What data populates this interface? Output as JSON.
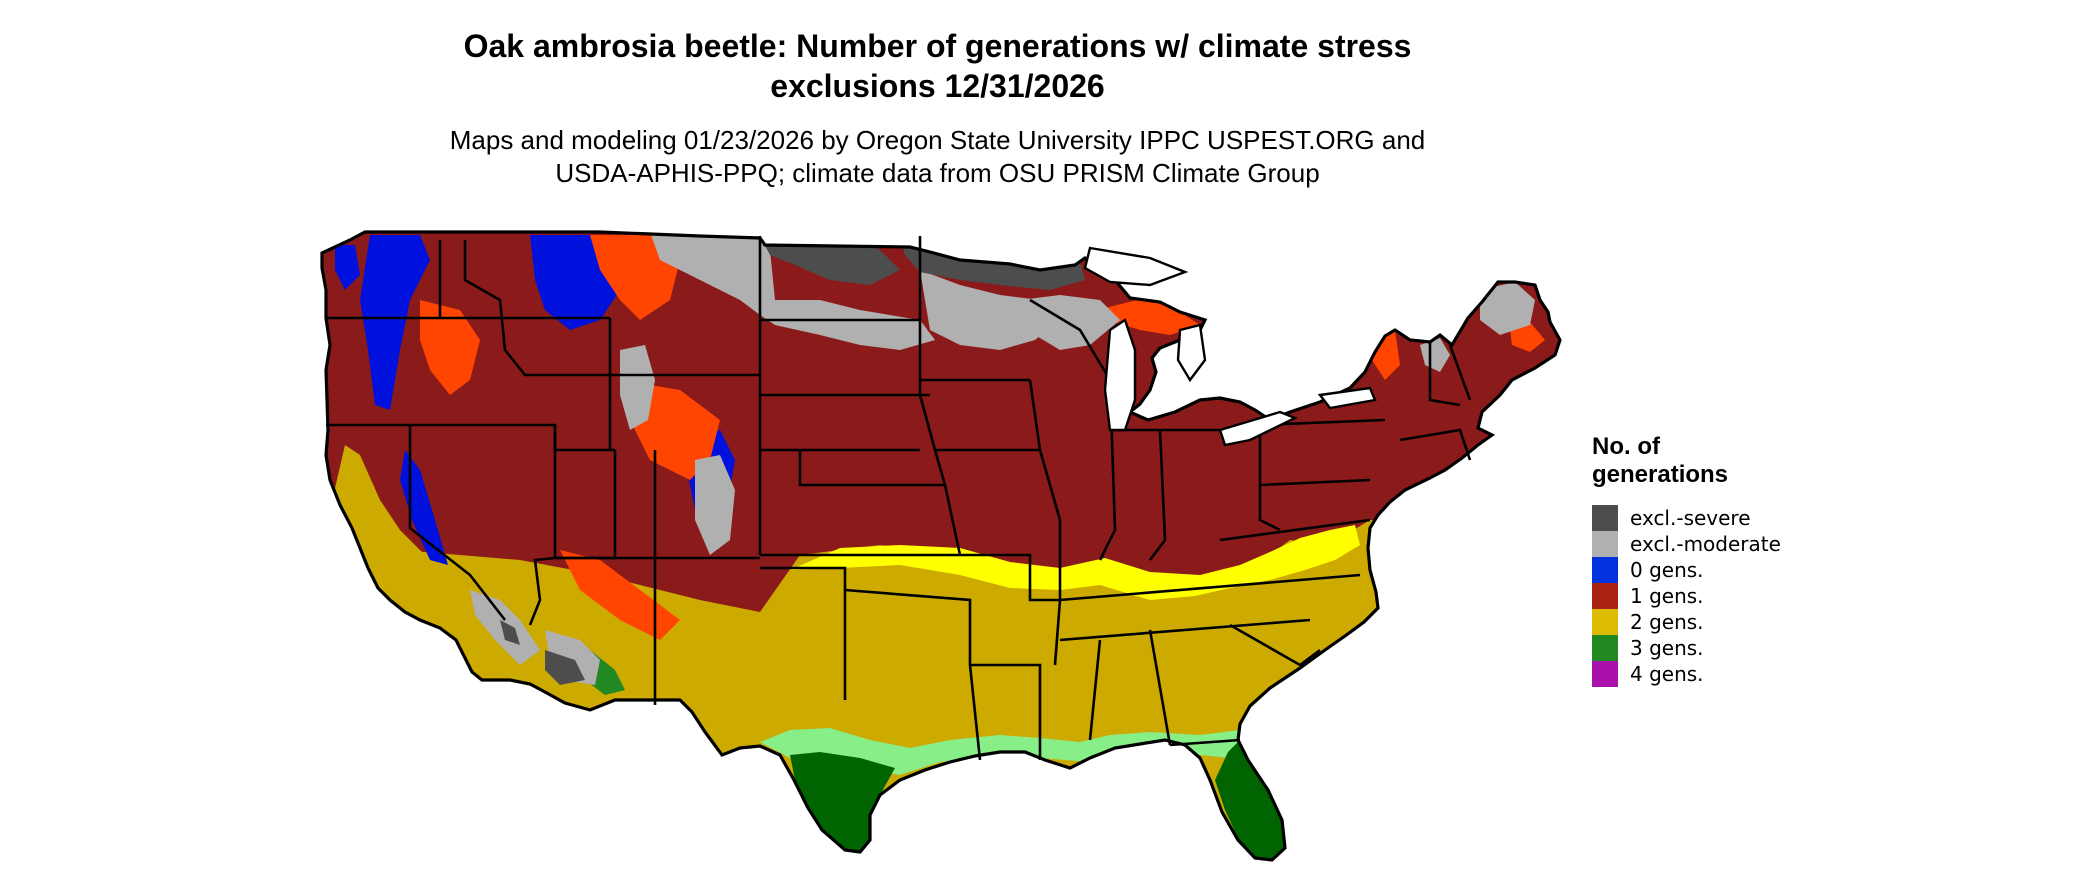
{
  "title": {
    "line1": "Oak ambrosia beetle: Number of generations w/ climate stress",
    "line2": "exclusions 12/31/2026"
  },
  "subtitle": {
    "line1": "Maps and modeling 01/23/2026 by Oregon State University IPPC USPEST.ORG and",
    "line2": "USDA-APHIS-PPQ; climate data from OSU PRISM Climate Group"
  },
  "legend": {
    "title_line1": "No. of",
    "title_line2": "generations",
    "items": [
      {
        "label": "excl.-severe",
        "color": "#4d4d4d"
      },
      {
        "label": "excl.-moderate",
        "color": "#b0b0b0"
      },
      {
        "label": "0 gens.",
        "color": "#0033dd"
      },
      {
        "label": "1 gens.",
        "color": "#aa2211"
      },
      {
        "label": "2 gens.",
        "color": "#ddbb00"
      },
      {
        "label": "3 gens.",
        "color": "#228822"
      },
      {
        "label": "4 gens.",
        "color": "#aa11aa"
      }
    ]
  },
  "map": {
    "colors": {
      "excl_severe": "#4d4d4d",
      "excl_moderate": "#b0b0b0",
      "gen0": "#0011dd",
      "gen1": "#8b1a1a",
      "gen1_light": "#ff4500",
      "gen2": "#ccaa00",
      "gen2_light": "#ffff00",
      "gen3": "#006400",
      "gen3_light": "#88ee88",
      "gen4": "#aa11aa",
      "border": "#000000"
    }
  }
}
